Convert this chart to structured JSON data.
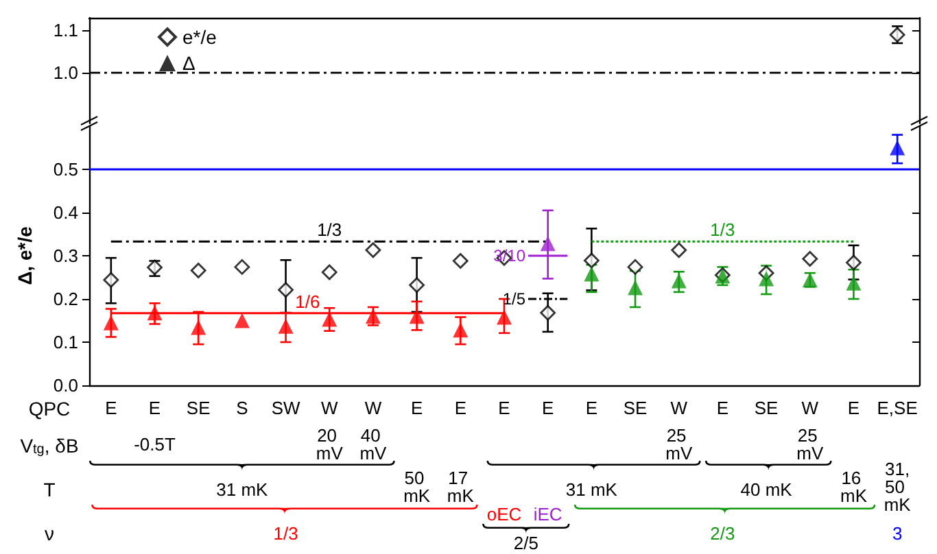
{
  "chart_data": [
    {
      "type": "scatter",
      "categories": [
        null,
        null,
        null,
        null,
        null,
        null,
        null,
        null,
        null,
        null,
        null,
        null,
        null,
        null,
        null,
        null,
        null,
        null,
        null
      ],
      "series": [
        {
          "name": "e*/e",
          "marker": "diamond",
          "color": "#000000",
          "values": [
            null,
            null,
            null,
            null,
            null,
            null,
            null,
            null,
            null,
            null,
            null,
            null,
            null,
            null,
            null,
            null,
            null,
            null,
            1.09
          ],
          "errors": [
            null,
            null,
            null,
            null,
            null,
            null,
            null,
            null,
            null,
            null,
            null,
            null,
            null,
            null,
            null,
            null,
            null,
            null,
            [
              1.07,
              1.11
            ]
          ]
        },
        {
          "name": "Δ",
          "marker": "triangle",
          "color": "#000000",
          "values": [
            null,
            null,
            null,
            null,
            null,
            null,
            null,
            null,
            null,
            null,
            null,
            null,
            null,
            null,
            null,
            null,
            null,
            null,
            null
          ]
        }
      ],
      "ref_lines": [
        {
          "axis": "y",
          "value": 1,
          "color": "#000000",
          "line_style": "dashed"
        }
      ],
      "ylim": [
        0.88,
        1.13
      ],
      "yticks": [
        {
          "value": 1,
          "label": "1.0"
        },
        1.1
      ],
      "tick_labels": "y",
      "legend": "top left"
    },
    {
      "type": "scatter",
      "categories": [
        "E",
        "E",
        "SE",
        "S",
        "SW",
        "W",
        "W",
        "E",
        "E",
        "E",
        "E",
        "E",
        "SE",
        "W",
        "E",
        "SE",
        "W",
        "E",
        "E,SE"
      ],
      "xlabel": "QPC",
      "ylabel": "Δ, e*/e",
      "series": [
        {
          "marker": "diamond",
          "color": "#000000",
          "values": [
            0.244,
            0.273,
            0.266,
            0.274,
            0.221,
            0.262,
            0.313,
            0.232,
            0.288,
            0.295,
            0.168,
            0.289,
            0.274,
            0.313,
            0.255,
            0.26,
            0.293,
            0.284,
            null
          ],
          "errors": [
            [
              0.19,
              0.295
            ],
            [
              0.253,
              0.288
            ],
            null,
            null,
            [
              0.168,
              0.29
            ],
            null,
            null,
            [
              0.17,
              0.295
            ],
            null,
            null,
            [
              0.124,
              0.213
            ],
            [
              0.22,
              0.363
            ],
            null,
            null,
            null,
            null,
            null,
            [
              0.245,
              0.324
            ],
            null
          ]
        },
        {
          "marker": "triangle",
          "colors": [
            "#ff0000",
            "#ff0000",
            "#ff0000",
            "#ff0000",
            "#ff0000",
            "#ff0000",
            "#ff0000",
            "#ff0000",
            "#ff0000",
            "#ff0000",
            "#a020d0",
            "#139a13",
            "#139a13",
            "#139a13",
            "#139a13",
            "#139a13",
            "#139a13",
            "#139a13",
            "#0000ff"
          ],
          "values": [
            0.145,
            0.168,
            0.134,
            0.15,
            0.137,
            0.153,
            0.16,
            0.16,
            0.128,
            0.158,
            0.328,
            0.258,
            0.226,
            0.242,
            0.253,
            0.247,
            0.244,
            0.237,
            0.55
          ],
          "errors": [
            [
              0.112,
              0.177
            ],
            [
              0.142,
              0.19
            ],
            [
              0.095,
              0.17
            ],
            null,
            [
              0.1,
              0.168
            ],
            [
              0.126,
              0.179
            ],
            [
              0.139,
              0.181
            ],
            [
              0.128,
              0.194
            ],
            [
              0.095,
              0.158
            ],
            [
              0.121,
              0.2
            ],
            [
              0.247,
              0.405
            ],
            [
              0.216,
              0.279
            ],
            [
              0.181,
              0.265
            ],
            [
              0.216,
              0.263
            ],
            [
              0.232,
              0.274
            ],
            [
              0.211,
              0.277
            ],
            [
              0.228,
              0.26
            ],
            [
              0.2,
              0.268
            ],
            [
              0.514,
              0.58
            ]
          ]
        },
        {
          "name": "1/3",
          "type": "line",
          "color": "#000000",
          "line_style": "dashed",
          "values": [
            0.333,
            0.333,
            0.333,
            0.333,
            0.333,
            0.333,
            0.333,
            0.333,
            0.333,
            0.333,
            0.333,
            null,
            null,
            null,
            null,
            null,
            null,
            null,
            null
          ]
        },
        {
          "name": "1/6",
          "type": "line",
          "color": "#ff0000",
          "line_style": "solid",
          "values": [
            0.167,
            0.167,
            0.167,
            0.167,
            0.167,
            0.167,
            0.167,
            0.167,
            0.167,
            0.167,
            null,
            null,
            null,
            null,
            null,
            null,
            null,
            null,
            null
          ]
        },
        {
          "name": "1/3",
          "type": "line",
          "color": "#139a13",
          "line_style": "dotted",
          "values": [
            null,
            null,
            null,
            null,
            null,
            null,
            null,
            null,
            null,
            null,
            null,
            0.333,
            0.333,
            0.333,
            0.333,
            0.333,
            0.333,
            0.333,
            null
          ]
        }
      ],
      "ref_lines": [
        {
          "axis": "y",
          "value": 0.5,
          "color": "#0000ff",
          "line_style": "solid"
        }
      ],
      "ylim": [
        0,
        0.6
      ],
      "yticks": [
        {
          "value": 0,
          "label": "0.0"
        },
        0.1,
        0.2,
        0.3,
        0.4,
        0.5
      ],
      "annotations": [
        "V$_{tg}$, δB",
        "-0.5T",
        "20 mV",
        "40 mV",
        "25 mV",
        "25 mV",
        "T",
        "31 mK",
        "50 mK",
        "17 mK",
        "31 mK",
        "40 mK",
        "16 mK",
        "31,50 mK",
        "ν",
        "1/3",
        "oEC",
        "iEC",
        "2/3",
        "3",
        "2/5",
        {
          "text": "1/5",
          "y": 0.2
        },
        {
          "text": "3/10",
          "y": 0.3
        }
      ]
    }
  ]
}
